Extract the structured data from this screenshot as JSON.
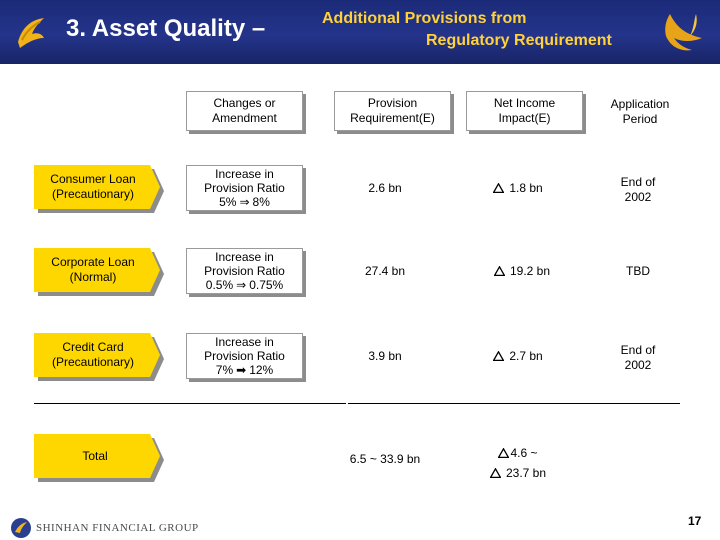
{
  "header": {
    "title_main": "3. Asset Quality –",
    "title_sub_line1": "Additional Provisions from",
    "title_sub_line2": "Regulatory Requirement"
  },
  "columns": {
    "changes": "Changes or\nAmendment",
    "provision": "Provision\nRequirement(E)",
    "net_income": "Net Income\nImpact(E)",
    "period": "Application\nPeriod"
  },
  "rows": [
    {
      "label": "Consumer Loan\n(Precautionary)",
      "change_line1": "Increase in",
      "change_line2": "Provision Ratio",
      "change_from": "5%",
      "change_to": "8%",
      "provision": "2.6 bn",
      "net_income": "1.8 bn",
      "period": "End of\n2002"
    },
    {
      "label": "Corporate Loan\n(Normal)",
      "change_line1": "Increase in",
      "change_line2": "Provision Ratio",
      "change_from": "0.5%",
      "change_to": "0.75%",
      "provision": "27.4 bn",
      "net_income": "19.2 bn",
      "period": "TBD"
    },
    {
      "label": "Credit Card\n(Precautionary)",
      "change_line1": "Increase in",
      "change_line2": "Provision Ratio",
      "change_from": "7%",
      "change_to": "12%",
      "provision": "3.9 bn",
      "net_income": "2.7 bn",
      "period": "End of\n2002"
    }
  ],
  "total": {
    "label": "Total",
    "provision": "6.5 ~ 33.9 bn",
    "net_income_line1": "4.6 ~",
    "net_income_line2": "23.7 bn"
  },
  "footer": {
    "company": "SHINHAN FINANCIAL GROUP",
    "page_number": "17"
  },
  "colors": {
    "header_bg": "#1f2e80",
    "title_accent": "#ffd23a",
    "label_fill": "#ffd700"
  }
}
